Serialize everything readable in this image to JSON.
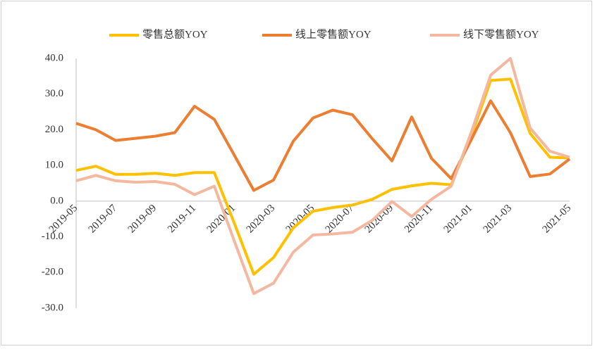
{
  "chart_data": {
    "type": "line",
    "categories": [
      "2019-05",
      null,
      "2019-07",
      null,
      "2019-09",
      null,
      "2019-11",
      null,
      "2020-01",
      null,
      "2020-03",
      null,
      "2020-05",
      null,
      "2020-07",
      null,
      "2020-09",
      null,
      "2020-11",
      null,
      "2021-01",
      null,
      "2021-03",
      null,
      null,
      "2021-05"
    ],
    "series": [
      {
        "name": "零售总额YOY",
        "color": "#FFC000",
        "values": [
          8.6,
          9.8,
          7.5,
          7.5,
          7.8,
          7.2,
          8.0,
          8.0,
          -6.0,
          -20.5,
          -15.8,
          -7.5,
          -2.8,
          -1.8,
          -1.1,
          0.5,
          3.3,
          4.3,
          5.0,
          4.6,
          18.0,
          33.8,
          34.2,
          19.0,
          12.3,
          12.1
        ]
      },
      {
        "name": "线上零售额YOY",
        "color": "#ED7D31",
        "values": [
          21.8,
          20.0,
          17.0,
          17.6,
          18.2,
          19.2,
          26.6,
          22.9,
          13.0,
          3.0,
          5.9,
          16.8,
          23.3,
          25.5,
          24.2,
          17.5,
          11.3,
          23.6,
          12.0,
          6.3,
          17.0,
          28.1,
          19.2,
          6.9,
          7.6,
          11.8
        ]
      },
      {
        "name": "线下零售额YOY",
        "color": "#F4B8A0",
        "values": [
          5.7,
          7.2,
          5.7,
          5.3,
          5.5,
          4.7,
          1.8,
          4.2,
          -11.0,
          -25.9,
          -23.0,
          -14.3,
          -9.5,
          -9.2,
          -8.7,
          -5.4,
          -0.1,
          -4.3,
          0.5,
          4.2,
          19.0,
          35.3,
          40.0,
          20.5,
          14.0,
          12.3
        ]
      }
    ],
    "ylim": [
      -30,
      40
    ],
    "yticks": [
      {
        "value": -30,
        "label": "-30.0"
      },
      {
        "value": -20,
        "label": "-20.0"
      },
      {
        "value": -10,
        "label": "-10.0"
      },
      {
        "value": 0,
        "label": "0.0"
      },
      {
        "value": 10,
        "label": "10.0"
      },
      {
        "value": 20,
        "label": "20.0"
      },
      {
        "value": 30,
        "label": "30.0"
      },
      {
        "value": 40,
        "label": "40.0"
      }
    ],
    "grid": false,
    "legend": "top"
  }
}
